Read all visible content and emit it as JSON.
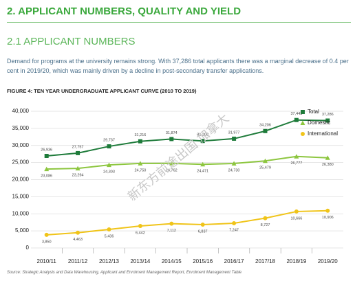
{
  "header": {
    "title": "2. APPLICANT NUMBERS, QUALITY AND YIELD",
    "subtitle": "2.1 APPLICANT NUMBERS"
  },
  "paragraph": "Demand for programs at the university remains strong. With 37,286 total applicants there was a marginal decrease of 0.4 per cent in 2019/20, which was mainly driven by a decline in post-secondary transfer applications.",
  "source": "Source: Strategic Analysis and Data Warehousing, Applicant and Enrolment Management Report, Enrolment Management Table",
  "watermark": "新东方前途出国 加拿大",
  "chart_data": {
    "type": "line",
    "title": "FIGURE 4: TEN YEAR UNDERGRADUATE APPLICANT CURVE (2010 TO 2019)",
    "categories": [
      "2010/11",
      "2011/12",
      "2012/13",
      "2013/14",
      "2014/15",
      "2015/16",
      "2016/17",
      "2017/18",
      "2018/19",
      "2019/20"
    ],
    "series": [
      {
        "name": "Total",
        "color": "#1e7b3a",
        "marker": "square",
        "values": [
          26936,
          27757,
          29737,
          31216,
          31874,
          31308,
          31977,
          34206,
          37443,
          37286
        ],
        "value_labels": [
          "26,936",
          "27,757",
          "29,737",
          "31,216",
          "31,874",
          "31,308",
          "31,977",
          "34,206",
          "37,443",
          "37,286"
        ]
      },
      {
        "name": "Domestic",
        "color": "#8dc63f",
        "marker": "triangle",
        "values": [
          23086,
          23294,
          24303,
          24750,
          24762,
          24471,
          24730,
          25479,
          26777,
          26380
        ],
        "value_labels": [
          "23,086",
          "23,294",
          "24,303",
          "24,750",
          "24,762",
          "24,471",
          "24,730",
          "25,479",
          "26,777",
          "26,380"
        ]
      },
      {
        "name": "International",
        "color": "#f0c419",
        "marker": "circle",
        "values": [
          3850,
          4463,
          5436,
          6442,
          7112,
          6837,
          7247,
          8727,
          10666,
          10906
        ],
        "value_labels": [
          "3,850",
          "4,463",
          "5,436",
          "6,442",
          "7,112",
          "6,837",
          "7,247",
          "8,727",
          "10,666",
          "10,906"
        ]
      }
    ],
    "ylim": [
      0,
      40000
    ],
    "yticks": [
      0,
      {
        "value": 5000,
        "label": "5,000"
      },
      {
        "value": 10000,
        "label": "10,000"
      },
      {
        "value": 15000,
        "label": "15,000"
      },
      {
        "value": 20000,
        "label": "20,000"
      },
      {
        "value": 25000,
        "label": "25,000"
      },
      {
        "value": 30000,
        "label": "30,000"
      },
      {
        "value": 35000,
        "label": "35,000"
      },
      {
        "value": 40000,
        "label": "40,000"
      }
    ],
    "grid": true,
    "legend": "top-right"
  }
}
